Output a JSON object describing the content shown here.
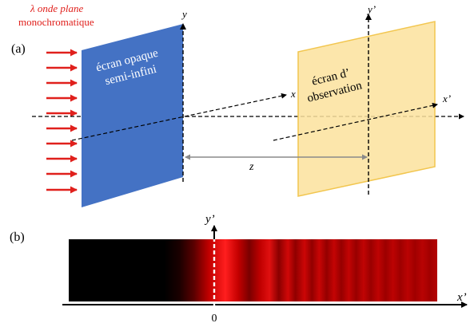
{
  "panel_a": {
    "label": "(a)",
    "wave_line1": "λ onde plane",
    "wave_line2": "monochromatique",
    "screen1_line1": "écran opaque",
    "screen1_line2": "semi-infini",
    "screen2_line1": "écran d’",
    "screen2_line2": "observation",
    "axis_y": "y",
    "axis_x": "x",
    "axis_y_prime": "y’",
    "axis_x_prime": "x’",
    "distance": "z"
  },
  "panel_b": {
    "label": "(b)",
    "axis_y_prime": "y’",
    "axis_x_prime": "x’",
    "origin": "0"
  },
  "colors": {
    "arrows": "#e0201c",
    "opaque_screen": "#4472c4",
    "observation_screen": "#fbe29c",
    "observation_border": "#f2c64f",
    "wave_text": "#e0201c"
  }
}
